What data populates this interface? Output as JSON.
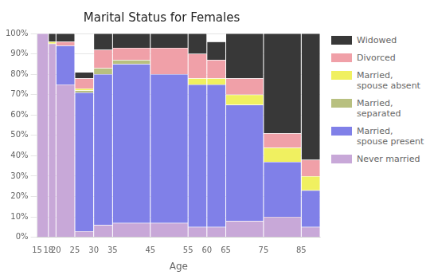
{
  "chart_data": {
    "type": "bar",
    "title": "Marital Status for Females",
    "xlabel": "Age",
    "bins": [
      15,
      18,
      20,
      25,
      30,
      35,
      45,
      55,
      60,
      65,
      75,
      85,
      90
    ],
    "series": [
      {
        "name": "Never married",
        "color": "#c8a8d8",
        "values": [
          100,
          95,
          75,
          3,
          6,
          7,
          7,
          5,
          5,
          8,
          10,
          5
        ]
      },
      {
        "name": "Married,\nspouse present",
        "color": "#8080e8",
        "values": [
          0,
          0,
          19,
          68,
          74,
          78,
          73,
          70,
          70,
          57,
          27,
          18
        ]
      },
      {
        "name": "Married,\nseparated",
        "color": "#b8c080",
        "values": [
          0,
          0,
          0,
          1,
          3,
          2,
          0,
          0,
          0,
          0,
          0,
          0
        ]
      },
      {
        "name": "Married,\nspouse absent",
        "color": "#f0f060",
        "values": [
          0,
          1,
          0,
          1,
          0,
          0,
          0,
          3,
          3,
          5,
          7,
          7
        ]
      },
      {
        "name": "Divorced",
        "color": "#f0a0a8",
        "values": [
          0,
          0,
          2,
          5,
          9,
          6,
          13,
          12,
          9,
          8,
          7,
          8
        ]
      },
      {
        "name": "Widowed",
        "color": "#383838",
        "values": [
          0,
          4,
          4,
          3,
          8,
          7,
          7,
          10,
          9,
          22,
          49,
          62
        ]
      }
    ],
    "stacked": true,
    "xlim": [
      15,
      90
    ],
    "xticks": [
      15,
      18,
      20,
      25,
      30,
      35,
      45,
      55,
      60,
      65,
      75,
      85
    ],
    "ylim": [
      0,
      100
    ],
    "yticks": [
      {
        "value": 0,
        "label": "0%"
      },
      {
        "value": 10,
        "label": "10%"
      },
      {
        "value": 20,
        "label": "20%"
      },
      {
        "value": 30,
        "label": "30%"
      },
      {
        "value": 40,
        "label": "40%"
      },
      {
        "value": 50,
        "label": "50%"
      },
      {
        "value": 60,
        "label": "60%"
      },
      {
        "value": 70,
        "label": "70%"
      },
      {
        "value": 80,
        "label": "80%"
      },
      {
        "value": 90,
        "label": "90%"
      },
      {
        "value": 100,
        "label": "100%"
      }
    ],
    "grid": "y",
    "legend": "right"
  }
}
